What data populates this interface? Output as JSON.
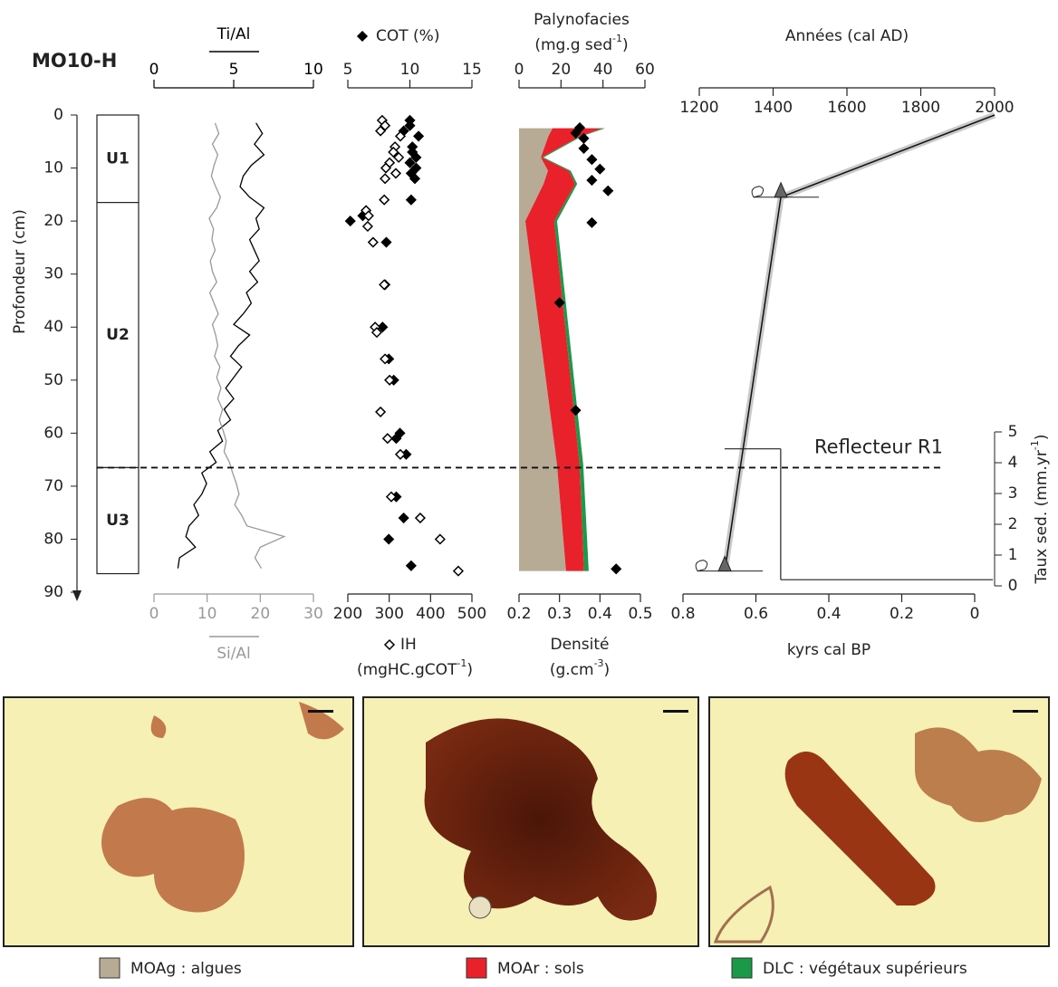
{
  "title": "MO10-H",
  "chart_data": [
    {
      "type": "lithology",
      "ylabel": "Profondeur (cm)",
      "ylim": [
        0,
        90
      ],
      "yticks": [
        0,
        10,
        20,
        30,
        40,
        50,
        60,
        70,
        80,
        90
      ],
      "units": [
        {
          "name": "U1",
          "top": 0,
          "bottom": 16.5
        },
        {
          "name": "U2",
          "top": 16.5,
          "bottom": 66.5
        },
        {
          "name": "U3",
          "top": 66.5,
          "bottom": 86.5
        }
      ]
    },
    {
      "type": "line",
      "xlim": [
        0,
        10
      ],
      "xticks": [
        0,
        5,
        10
      ],
      "x2lim": [
        0,
        30
      ],
      "x2ticks": [
        0,
        10,
        20,
        30
      ],
      "y": [
        1.5,
        3.5,
        5.5,
        7.5,
        9.5,
        11.5,
        13.5,
        15.5,
        17.5,
        19.5,
        21.5,
        23.5,
        25.5,
        27.5,
        29.5,
        31.5,
        33.5,
        35.5,
        37.5,
        39.5,
        41.5,
        43.5,
        45.5,
        47.5,
        49.5,
        51.5,
        53.5,
        55.5,
        57.5,
        59.5,
        61.5,
        63.5,
        65.5,
        67.5,
        69.5,
        71.5,
        73.5,
        75.5,
        77.5,
        79.5,
        81.5,
        83.5,
        85.5
      ],
      "series": [
        {
          "name": "Ti/Al",
          "color": "#000000",
          "values": [
            6.4,
            6.8,
            6.3,
            6.9,
            6.1,
            5.6,
            5.4,
            6.0,
            6.9,
            6.4,
            6.6,
            6.0,
            6.3,
            6.6,
            6.0,
            6.5,
            5.8,
            6.1,
            5.6,
            5.0,
            6.0,
            5.3,
            4.8,
            5.5,
            5.0,
            4.5,
            5.0,
            4.4,
            4.8,
            4.0,
            4.3,
            3.5,
            3.9,
            3.0,
            3.3,
            3.0,
            2.5,
            2.8,
            2.2,
            2.0,
            2.6,
            1.6,
            1.5
          ]
        },
        {
          "name": "Si/Al",
          "color": "#999999",
          "axis": "x2",
          "values": [
            11.5,
            12.2,
            11.0,
            12.0,
            11.3,
            10.8,
            11.6,
            12.5,
            11.8,
            10.4,
            11.2,
            10.9,
            11.5,
            10.6,
            11.0,
            11.8,
            10.5,
            11.3,
            12.1,
            11.0,
            11.6,
            12.0,
            11.4,
            12.4,
            11.8,
            12.6,
            12.0,
            12.9,
            12.3,
            13.0,
            13.6,
            13.2,
            14.2,
            14.8,
            15.5,
            16.0,
            15.2,
            16.5,
            17.5,
            24.5,
            20.0,
            19.0,
            20.2
          ]
        }
      ]
    },
    {
      "type": "scatter",
      "xlim": [
        5,
        15
      ],
      "xticks": [
        5,
        10,
        15
      ],
      "x2lim": [
        200,
        500
      ],
      "x2ticks": [
        200,
        300,
        400,
        500
      ],
      "series": [
        {
          "name": "COT (%)",
          "marker": "filled",
          "y": [
            1,
            2,
            3,
            4,
            6,
            7,
            8,
            9,
            10,
            11,
            12,
            16,
            19,
            20,
            24,
            32,
            40,
            46,
            50,
            60,
            61,
            64,
            72,
            76,
            80,
            85
          ],
          "values": [
            10.0,
            10.0,
            9.5,
            10.7,
            10.2,
            10.2,
            10.5,
            10.0,
            10.5,
            10.1,
            10.4,
            10.1,
            6.2,
            5.2,
            8.1,
            8.0,
            7.8,
            8.3,
            8.7,
            9.2,
            8.9,
            9.7,
            8.9,
            9.5,
            8.3,
            10.1
          ]
        },
        {
          "name": "IH",
          "marker": "open",
          "axis": "x2",
          "unit_label": {
            "text": "(mgHC.gCOT",
            "sup": "-1",
            "end": ")"
          },
          "y": [
            1,
            2,
            3,
            4,
            6,
            7,
            8,
            9,
            10,
            11,
            12,
            16,
            18,
            19,
            21,
            24,
            32,
            40,
            41,
            46,
            50,
            56,
            61,
            64,
            72,
            76,
            80,
            86
          ],
          "values": [
            283,
            290,
            279,
            327,
            314,
            310,
            323,
            301,
            292,
            316,
            290,
            288,
            244,
            250,
            248,
            261,
            288,
            266,
            270,
            290,
            301,
            279,
            296,
            327,
            305,
            375,
            423,
            467
          ]
        }
      ]
    },
    {
      "type": "stacked_area",
      "title": "Palynofacies",
      "unit_label": {
        "text": "(mg.g sed",
        "sup": "-1",
        "end": ")"
      },
      "xlim": [
        0,
        60
      ],
      "xticks": [
        0,
        20,
        40,
        60
      ],
      "y": [
        2.5,
        4,
        8,
        10.5,
        13,
        20,
        66,
        86
      ],
      "series": [
        {
          "name": "MOAg : algues",
          "color": "#b8ab95",
          "values": [
            16,
            14,
            10.4,
            13.8,
            11.7,
            3,
            18.1,
            22.4
          ]
        },
        {
          "name": "MOAr : sols",
          "color": "#e8212b",
          "values": [
            23.7,
            15.1,
            0.4,
            9.9,
            15.1,
            13.8,
            10.8,
            8.6
          ]
        },
        {
          "name": "DLC : végétaux supérieurs",
          "color": "#1a9a48",
          "values": [
            1.3,
            0.9,
            0.9,
            0.9,
            0.9,
            1.3,
            1.7,
            2.2
          ]
        }
      ],
      "density": {
        "name": "Densité",
        "unit_label": {
          "text": "(g.cm",
          "sup": "-3",
          "end": ")"
        },
        "lim": [
          0.2,
          0.5
        ],
        "ticks": [
          0.2,
          0.3,
          0.4,
          0.5
        ],
        "y": [
          2.4,
          3.4,
          4.4,
          6.3,
          8.4,
          10.2,
          12.3,
          14.3,
          20.3,
          35.4,
          55.7,
          85.6
        ],
        "values": [
          0.35,
          0.34,
          0.36,
          0.36,
          0.38,
          0.4,
          0.38,
          0.42,
          0.38,
          0.3,
          0.34,
          0.44
        ]
      }
    },
    {
      "type": "age_model",
      "xlabel": "Années (cal AD)",
      "xlim": [
        1200,
        2000
      ],
      "xticks": [
        1200,
        1400,
        1600,
        1800,
        2000
      ],
      "x2label": "kyrs cal BP",
      "x2lim": [
        0.8,
        0
      ],
      "x2ticks": [
        0.8,
        0.6,
        0.4,
        0.2,
        0
      ],
      "y": [
        0,
        15.5,
        86
      ],
      "values": [
        2000,
        1421,
        1269
      ],
      "dates": {
        "y": [
          15.5,
          86
        ],
        "values": [
          1421,
          1269
        ]
      },
      "rate": {
        "label": {
          "text": "Taux sed. (mm.yr",
          "sup": "-1",
          "end": ")"
        },
        "lim": [
          0,
          5
        ],
        "ticks": [
          0,
          1,
          2,
          3,
          4,
          5
        ],
        "segments": [
          {
            "start": 0.686,
            "end": 0.532,
            "value": 4.45
          },
          {
            "start": 0.532,
            "end": -0.05,
            "value": 0.2
          }
        ]
      }
    }
  ],
  "reflector": {
    "label": "Reflecteur R1",
    "depth": 66.5
  }
}
